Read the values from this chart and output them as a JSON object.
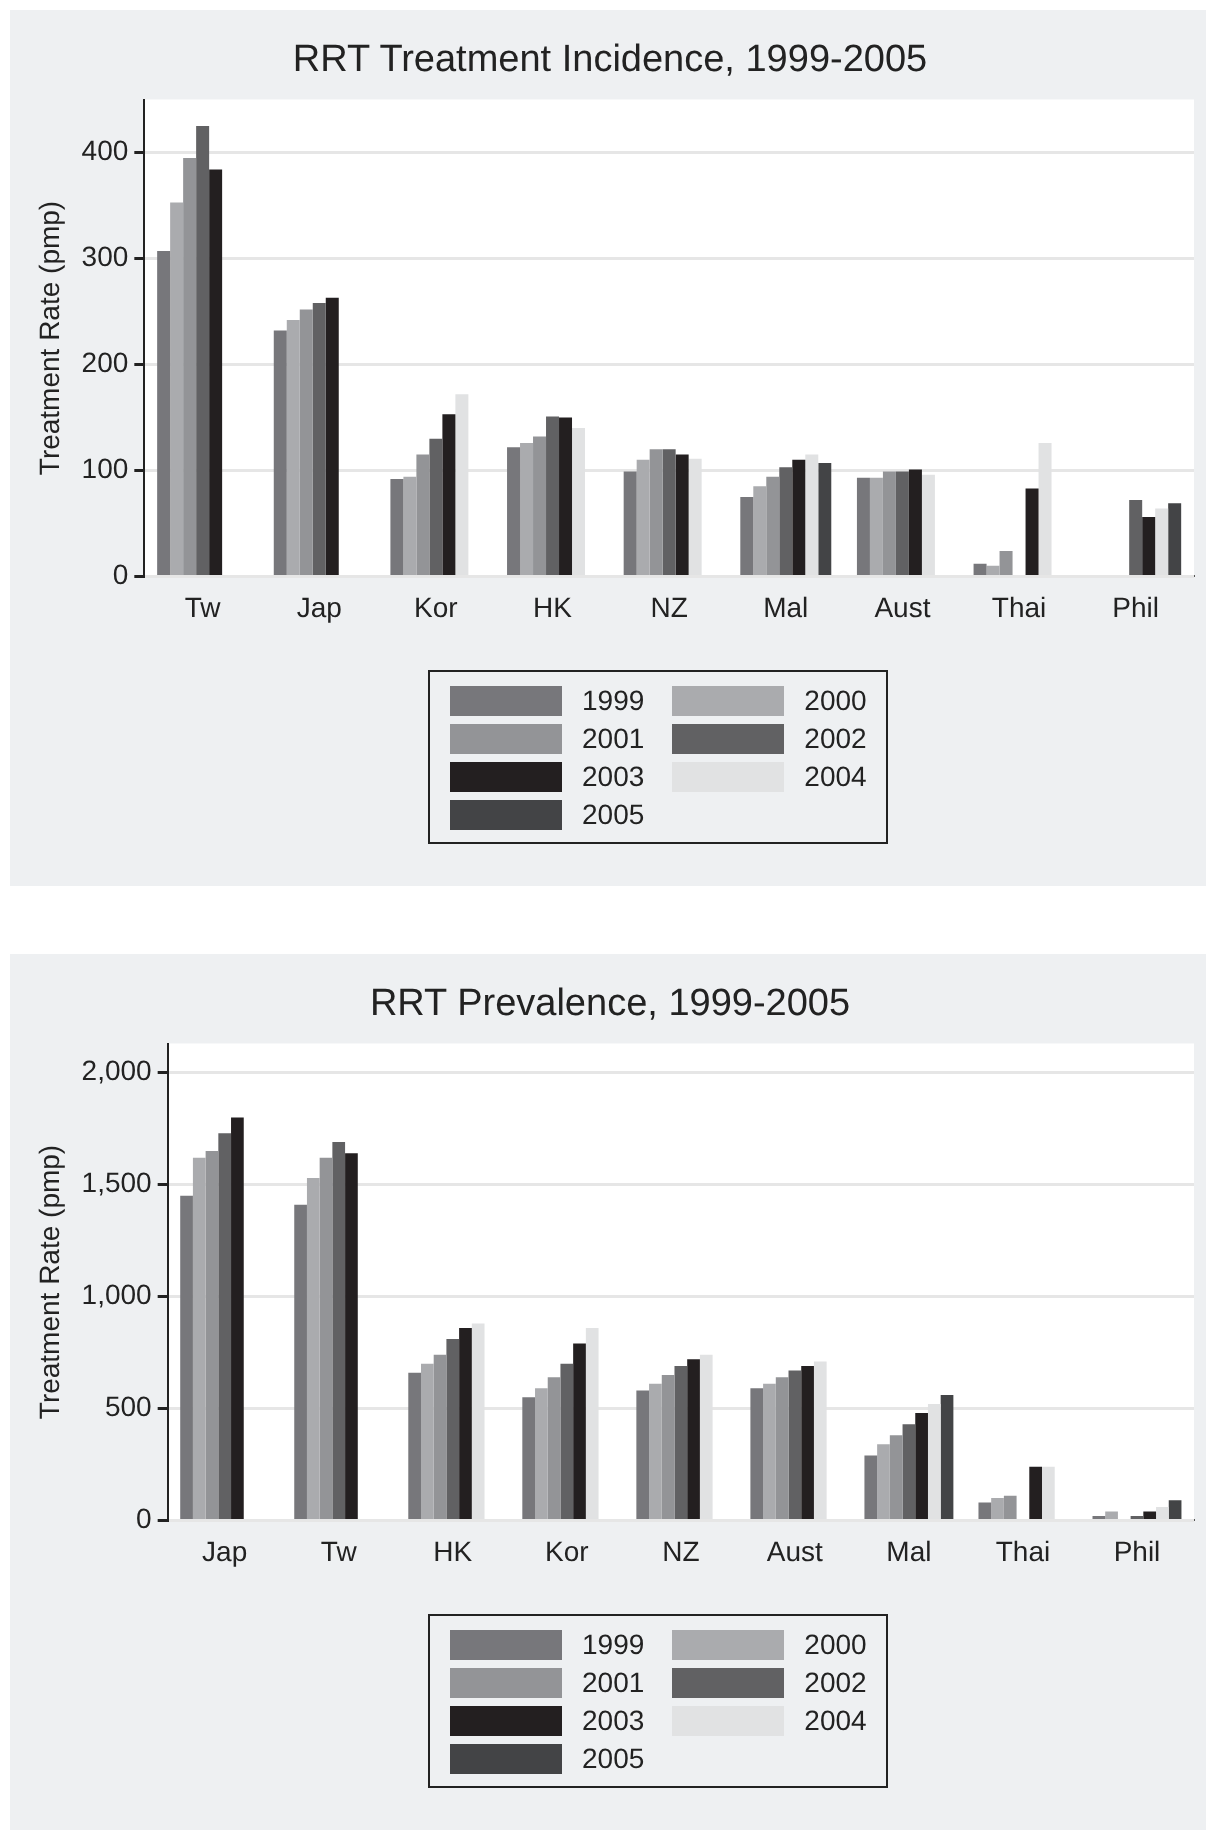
{
  "chart_data": [
    {
      "type": "bar",
      "title": "RRT Treatment Incidence, 1999-2005",
      "ylabel": "Treatment Rate (pmp)",
      "categories": [
        "Tw",
        "Jap",
        "Kor",
        "HK",
        "NZ",
        "Mal",
        "Aust",
        "Thai",
        "Phil"
      ],
      "ylim": [
        0,
        450
      ],
      "yticks": [
        0,
        100,
        200,
        300,
        400
      ],
      "grid": "y",
      "legend": "bottom",
      "series": [
        {
          "name": "1999",
          "color": "#77777b",
          "values": [
            307,
            232,
            92,
            122,
            99,
            75,
            93,
            12,
            null
          ]
        },
        {
          "name": "2000",
          "color": "#aaabae",
          "values": [
            353,
            242,
            94,
            126,
            110,
            85,
            93,
            10,
            null
          ]
        },
        {
          "name": "2001",
          "color": "#939497",
          "values": [
            395,
            252,
            115,
            132,
            120,
            94,
            99,
            24,
            null
          ]
        },
        {
          "name": "2002",
          "color": "#616163",
          "values": [
            425,
            258,
            130,
            151,
            120,
            103,
            99,
            null,
            72
          ]
        },
        {
          "name": "2003",
          "color": "#231f20",
          "values": [
            384,
            263,
            153,
            150,
            115,
            110,
            101,
            83,
            56
          ]
        },
        {
          "name": "2004",
          "color": "#e1e2e3",
          "values": [
            null,
            null,
            172,
            140,
            111,
            115,
            96,
            126,
            64
          ]
        },
        {
          "name": "2005",
          "color": "#434446",
          "values": [
            null,
            null,
            null,
            null,
            null,
            107,
            null,
            null,
            69
          ]
        }
      ]
    },
    {
      "type": "bar",
      "title": "RRT Prevalence, 1999-2005",
      "ylabel": "Treatment Rate (pmp)",
      "categories": [
        "Jap",
        "Tw",
        "HK",
        "Kor",
        "NZ",
        "Aust",
        "Mal",
        "Thai",
        "Phil"
      ],
      "ylim": [
        0,
        2130
      ],
      "yticks": [
        0,
        500,
        {
          "value": 1000,
          "label": "1,000"
        },
        {
          "value": 1500,
          "label": "1,500"
        },
        {
          "value": 2000,
          "label": "2,000"
        }
      ],
      "grid": "y",
      "legend": "bottom",
      "series": [
        {
          "name": "1999",
          "color": "#77777b",
          "values": [
            1450,
            1410,
            660,
            550,
            580,
            590,
            290,
            80,
            20
          ]
        },
        {
          "name": "2000",
          "color": "#aaabae",
          "values": [
            1620,
            1530,
            700,
            590,
            610,
            610,
            340,
            100,
            40
          ]
        },
        {
          "name": "2001",
          "color": "#939497",
          "values": [
            1650,
            1620,
            740,
            640,
            650,
            640,
            380,
            110,
            null
          ]
        },
        {
          "name": "2002",
          "color": "#616163",
          "values": [
            1730,
            1690,
            810,
            700,
            690,
            670,
            430,
            null,
            20
          ]
        },
        {
          "name": "2003",
          "color": "#231f20",
          "values": [
            1800,
            1640,
            860,
            790,
            720,
            690,
            480,
            240,
            40
          ]
        },
        {
          "name": "2004",
          "color": "#e1e2e3",
          "values": [
            null,
            null,
            880,
            860,
            740,
            710,
            520,
            240,
            60
          ]
        },
        {
          "name": "2005",
          "color": "#434446",
          "values": [
            null,
            null,
            null,
            null,
            null,
            null,
            560,
            null,
            90
          ]
        }
      ]
    }
  ]
}
